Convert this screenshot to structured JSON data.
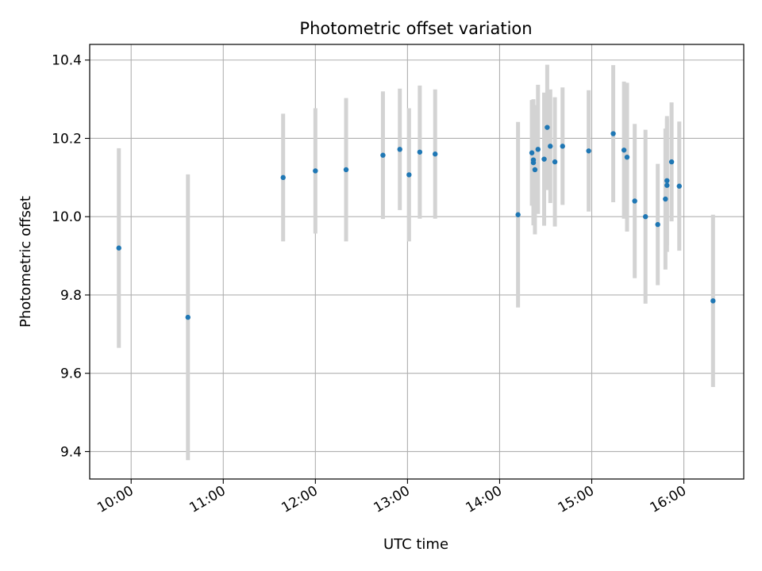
{
  "chart_data": {
    "type": "scatter",
    "title": "Photometric offset variation",
    "xlabel": "UTC time",
    "ylabel": "Photometric offset",
    "x_ticks": [
      "10:00",
      "11:00",
      "12:00",
      "13:00",
      "14:00",
      "15:00",
      "16:00"
    ],
    "y_ticks": [
      "9.4",
      "9.6",
      "9.8",
      "10.0",
      "10.2",
      "10.4"
    ],
    "xlim": [
      "09:33",
      "16:39"
    ],
    "ylim": [
      9.33,
      10.44
    ],
    "grid": true,
    "colors": {
      "point": "#1f77b4",
      "errorbar": "#d3d3d3",
      "grid": "#b0b0b0"
    },
    "points": [
      {
        "x": "09:52",
        "y": 9.92,
        "err": 0.255
      },
      {
        "x": "10:37",
        "y": 9.743,
        "err": 0.365
      },
      {
        "x": "11:39",
        "y": 10.1,
        "err": 0.163
      },
      {
        "x": "12:00",
        "y": 10.117,
        "err": 0.16
      },
      {
        "x": "12:20",
        "y": 10.12,
        "err": 0.183
      },
      {
        "x": "12:44",
        "y": 10.157,
        "err": 0.163
      },
      {
        "x": "12:55",
        "y": 10.172,
        "err": 0.155
      },
      {
        "x": "13:01",
        "y": 10.107,
        "err": 0.17
      },
      {
        "x": "13:08",
        "y": 10.165,
        "err": 0.17
      },
      {
        "x": "13:18",
        "y": 10.16,
        "err": 0.165
      },
      {
        "x": "14:12",
        "y": 10.005,
        "err": 0.237
      },
      {
        "x": "14:21",
        "y": 10.163,
        "err": 0.135
      },
      {
        "x": "14:22",
        "y": 10.145,
        "err": 0.155
      },
      {
        "x": "14:22",
        "y": 10.138,
        "err": 0.16
      },
      {
        "x": "14:23",
        "y": 10.12,
        "err": 0.165
      },
      {
        "x": "14:25",
        "y": 10.172,
        "err": 0.165
      },
      {
        "x": "14:29",
        "y": 10.147,
        "err": 0.17
      },
      {
        "x": "14:31",
        "y": 10.228,
        "err": 0.16
      },
      {
        "x": "14:33",
        "y": 10.18,
        "err": 0.145
      },
      {
        "x": "14:36",
        "y": 10.14,
        "err": 0.165
      },
      {
        "x": "14:41",
        "y": 10.18,
        "err": 0.15
      },
      {
        "x": "14:58",
        "y": 10.168,
        "err": 0.155
      },
      {
        "x": "15:14",
        "y": 10.212,
        "err": 0.175
      },
      {
        "x": "15:21",
        "y": 10.17,
        "err": 0.175
      },
      {
        "x": "15:23",
        "y": 10.152,
        "err": 0.19
      },
      {
        "x": "15:28",
        "y": 10.04,
        "err": 0.197
      },
      {
        "x": "15:35",
        "y": 10.0,
        "err": 0.222
      },
      {
        "x": "15:43",
        "y": 9.98,
        "err": 0.155
      },
      {
        "x": "15:48",
        "y": 10.045,
        "err": 0.18
      },
      {
        "x": "15:49",
        "y": 10.092,
        "err": 0.165
      },
      {
        "x": "15:49",
        "y": 10.08,
        "err": 0.17
      },
      {
        "x": "15:52",
        "y": 10.14,
        "err": 0.152
      },
      {
        "x": "15:57",
        "y": 10.078,
        "err": 0.165
      },
      {
        "x": "16:19",
        "y": 9.785,
        "err": 0.22
      }
    ]
  }
}
